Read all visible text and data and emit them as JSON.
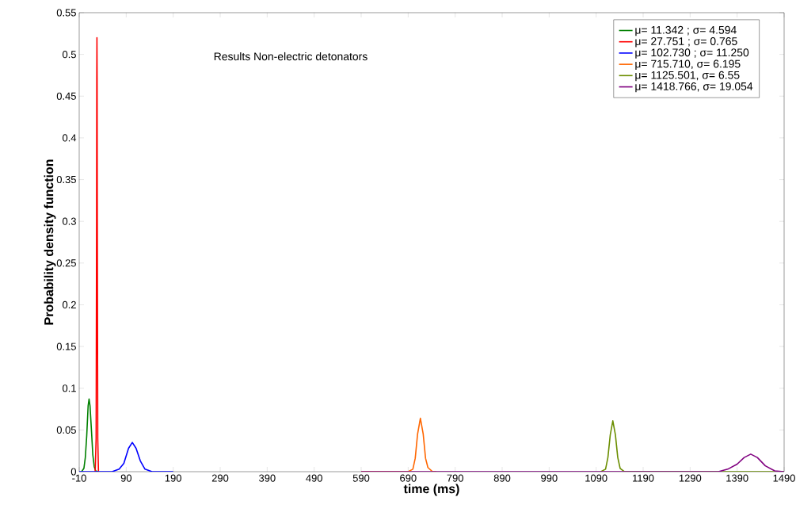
{
  "chart_data": {
    "type": "line",
    "xlabel": "time (ms)",
    "ylabel": "Probability density function",
    "annotations": [
      "Results Non-electric detonators"
    ],
    "xlim": [
      -10,
      1490
    ],
    "ylim": [
      0,
      0.55
    ],
    "xticks": [
      -10,
      90,
      190,
      290,
      390,
      490,
      590,
      690,
      790,
      890,
      990,
      1090,
      1190,
      1290,
      1390,
      1490
    ],
    "yticks": [
      0,
      0.05,
      0.1,
      0.15,
      0.2,
      0.25,
      0.3,
      0.35,
      0.4,
      0.45,
      0.5,
      0.55
    ],
    "grid": false,
    "legend": "top right",
    "marker": "none",
    "line_style": "solid",
    "series": [
      {
        "name": "μ= 11.342 ; σ= 4.594",
        "color": "#008000",
        "x": [
          -5,
          0,
          3,
          6,
          9,
          11,
          13,
          16,
          19,
          22,
          25,
          30
        ],
        "values": [
          0,
          0.004,
          0.017,
          0.043,
          0.079,
          0.087,
          0.079,
          0.05,
          0.02,
          0.006,
          0.001,
          0
        ]
      },
      {
        "name": "μ= 27.751 ; σ= 0.765",
        "color": "#ff0000",
        "x": [
          24,
          26,
          27,
          27.4,
          27.75,
          28.1,
          28.5,
          29.5,
          31
        ],
        "values": [
          0,
          0.04,
          0.3,
          0.47,
          0.52,
          0.47,
          0.3,
          0.04,
          0
        ]
      },
      {
        "name": "μ= 102.730 ; σ= 11.250",
        "color": "#0000ff",
        "x": [
          -10,
          60,
          75,
          85,
          95,
          103,
          111,
          120,
          130,
          145,
          190
        ],
        "values": [
          0,
          0,
          0.003,
          0.01,
          0.028,
          0.035,
          0.028,
          0.013,
          0.003,
          0,
          0
        ]
      },
      {
        "name": "μ= 715.710, σ= 6.195",
        "color": "#ff6600",
        "x": [
          590,
          690,
          700,
          705,
          710,
          716,
          722,
          727,
          732,
          742,
          750
        ],
        "values": [
          0,
          0,
          0.003,
          0.016,
          0.045,
          0.064,
          0.045,
          0.016,
          0.005,
          0,
          0
        ]
      },
      {
        "name": "μ= 1125.501, σ= 6.55",
        "color": "#6b8e00",
        "x": [
          1100,
          1110,
          1115,
          1120,
          1125.5,
          1131,
          1136,
          1141,
          1150,
          1490
        ],
        "values": [
          0,
          0.003,
          0.017,
          0.044,
          0.061,
          0.044,
          0.017,
          0.004,
          0,
          0
        ]
      },
      {
        "name": "μ= 1418.766, σ= 19.054",
        "color": "#800080",
        "x": [
          590,
          1350,
          1370,
          1390,
          1405,
          1419,
          1433,
          1450,
          1470,
          1490
        ],
        "values": [
          0,
          0,
          0.003,
          0.009,
          0.017,
          0.021,
          0.017,
          0.007,
          0.001,
          0
        ]
      }
    ]
  }
}
